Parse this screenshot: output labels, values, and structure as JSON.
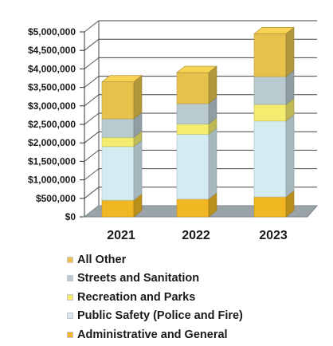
{
  "chart_data": {
    "type": "bar",
    "stacked": true,
    "style": "3d",
    "categories": [
      "2021",
      "2022",
      "2023"
    ],
    "series": [
      {
        "name": "Administrative and General",
        "color": "#f0b722",
        "values": [
          450000,
          480000,
          540000
        ]
      },
      {
        "name": "Public Safety (Police and Fire)",
        "color": "#d5ebf2",
        "values": [
          1450000,
          1750000,
          2050000
        ]
      },
      {
        "name": "Recreation and Parks",
        "color": "#f3ec6e",
        "values": [
          250000,
          280000,
          450000
        ]
      },
      {
        "name": "Streets and Sanitation",
        "color": "#b9cad1",
        "values": [
          500000,
          550000,
          750000
        ]
      },
      {
        "name": "All Other",
        "color": "#e6c24c",
        "values": [
          1000000,
          840000,
          1160000
        ]
      }
    ],
    "yticks": [
      "$0",
      "$500,000",
      "$1,000,000",
      "$1,500,000",
      "$2,000,000",
      "$2,500,000",
      "$3,000,000",
      "$3,500,000",
      "$4,000,000",
      "$4,500,000",
      "$5,000,000"
    ],
    "ylim": [
      0,
      5000000
    ],
    "grid": true,
    "legend": "bottom",
    "title": "",
    "xlabel": "",
    "ylabel": ""
  },
  "legend_order": [
    4,
    3,
    2,
    1,
    0
  ]
}
